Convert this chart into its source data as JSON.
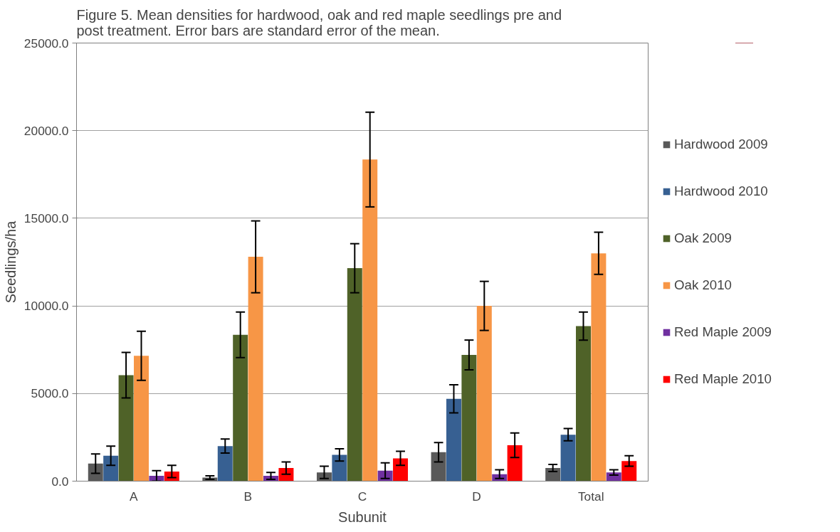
{
  "chart_data": {
    "type": "bar",
    "title": "Figure 5. Mean densities for hardwood, oak and red maple seedlings pre and post treatment. Error bars are standard error of the mean.",
    "xlabel": "Subunit",
    "ylabel": "Seedlings/ha",
    "categories": [
      "A",
      "B",
      "C",
      "D",
      "Total"
    ],
    "series": [
      {
        "name": "Hardwood 2009",
        "color": "#595959",
        "values": [
          1000,
          200,
          500,
          1650,
          750
        ],
        "errors": [
          550,
          100,
          350,
          550,
          200
        ]
      },
      {
        "name": "Hardwood 2010",
        "color": "#376092",
        "values": [
          1450,
          2000,
          1500,
          4700,
          2650
        ],
        "errors": [
          550,
          400,
          350,
          800,
          350
        ]
      },
      {
        "name": "Oak 2009",
        "color": "#4f6228",
        "values": [
          6050,
          8350,
          12150,
          7200,
          8850
        ],
        "errors": [
          1300,
          1300,
          1400,
          850,
          800
        ]
      },
      {
        "name": "Oak 2010",
        "color": "#f79646",
        "values": [
          7150,
          12800,
          18350,
          10000,
          13000
        ],
        "errors": [
          1400,
          2050,
          2700,
          1400,
          1200
        ]
      },
      {
        "name": "Red Maple 2009",
        "color": "#7030a0",
        "values": [
          300,
          300,
          600,
          400,
          500
        ],
        "errors": [
          300,
          200,
          450,
          250,
          150
        ]
      },
      {
        "name": "Red Maple 2010",
        "color": "#ff0000",
        "values": [
          550,
          750,
          1300,
          2050,
          1150
        ],
        "errors": [
          350,
          350,
          400,
          700,
          300
        ]
      }
    ],
    "ylim": [
      0,
      25000
    ],
    "yticks": [
      {
        "value": 0,
        "label": "0.0"
      },
      {
        "value": 5000,
        "label": "5000.0"
      },
      {
        "value": 10000,
        "label": "10000.0"
      },
      {
        "value": 15000,
        "label": "15000.0"
      },
      {
        "value": 20000,
        "label": "20000.0"
      },
      {
        "value": 25000,
        "label": "25000.0"
      }
    ],
    "grid": "y",
    "legend": "right"
  }
}
